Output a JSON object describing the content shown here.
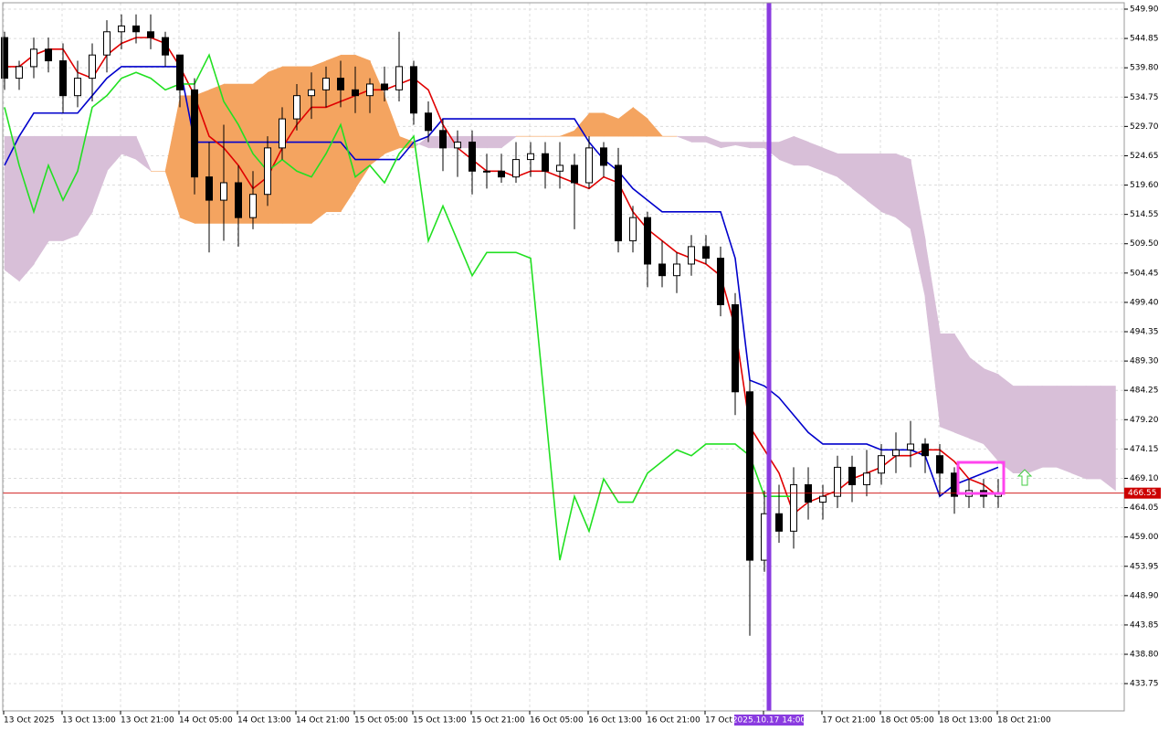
{
  "chart_data": {
    "type": "candlestick",
    "x_labels": [
      "13 Oct 2025",
      "13 Oct 13:00",
      "13 Oct 21:00",
      "14 Oct 05:00",
      "14 Oct 13:00",
      "14 Oct 21:00",
      "15 Oct 05:00",
      "15 Oct 13:00",
      "15 Oct 21:00",
      "16 Oct 05:00",
      "16 Oct 13:00",
      "16 Oct 21:00",
      "17 Oct 05:00",
      null,
      "17 Oct 21:00",
      "18 Oct 05:00",
      "18 Oct 13:00",
      "18 Oct 21:00"
    ],
    "open": [
      545,
      538,
      540,
      543,
      541,
      535,
      538,
      542,
      546,
      547,
      546,
      545,
      542,
      536,
      521,
      517,
      520,
      514,
      518,
      526,
      531,
      535,
      536,
      538,
      536,
      535,
      537,
      536,
      540,
      532,
      529,
      526,
      527,
      522,
      522,
      521,
      524,
      525,
      522,
      523,
      520,
      526,
      523,
      510,
      514,
      506,
      504,
      506,
      509,
      507,
      499,
      484,
      455,
      463,
      460,
      468,
      465,
      466,
      471,
      468,
      470,
      473,
      474,
      475,
      473,
      470,
      466,
      467,
      466
    ],
    "high": [
      546,
      541,
      545,
      545,
      544,
      541,
      544,
      548,
      549,
      549,
      549,
      546,
      542,
      538,
      527,
      530,
      523,
      522,
      528,
      533,
      537,
      539,
      540,
      541,
      540,
      538,
      540,
      546,
      541,
      534,
      531,
      529,
      529,
      525,
      525,
      527,
      527,
      527,
      527,
      525,
      528,
      527,
      526,
      516,
      515,
      510,
      508,
      511,
      511,
      509,
      501,
      486,
      467,
      468,
      471,
      471,
      468,
      473,
      473,
      474,
      475,
      477,
      479,
      476,
      475,
      471,
      469,
      469,
      469
    ],
    "low": [
      536,
      536,
      538,
      539,
      532,
      533,
      534,
      539,
      543,
      544,
      543,
      540,
      533,
      518,
      508,
      510,
      509,
      512,
      516,
      524,
      529,
      531,
      533,
      533,
      532,
      532,
      534,
      534,
      530,
      527,
      522,
      521,
      518,
      519,
      520,
      520,
      521,
      519,
      519,
      512,
      519,
      521,
      508,
      508,
      502,
      502,
      501,
      504,
      506,
      497,
      480,
      442,
      453,
      458,
      457,
      462,
      462,
      464,
      465,
      466,
      468,
      470,
      471,
      470,
      466,
      463,
      464,
      464,
      464
    ],
    "close": [
      538,
      540,
      543,
      541,
      535,
      538,
      542,
      546,
      547,
      546,
      545,
      542,
      536,
      521,
      517,
      520,
      514,
      518,
      526,
      531,
      535,
      536,
      538,
      536,
      535,
      537,
      536,
      540,
      532,
      529,
      526,
      527,
      522,
      522,
      521,
      524,
      525,
      522,
      523,
      520,
      526,
      523,
      510,
      514,
      506,
      504,
      506,
      509,
      507,
      499,
      484,
      455,
      463,
      460,
      468,
      465,
      466,
      471,
      468,
      470,
      473,
      474,
      475,
      473,
      470,
      466,
      467,
      466,
      466.55
    ],
    "lines": [
      {
        "color": "#0000cc",
        "values": [
          523,
          528,
          532,
          532,
          532,
          532,
          535,
          538,
          540,
          540,
          540,
          540,
          540,
          527,
          527,
          527,
          527,
          527,
          527,
          527,
          527,
          527,
          527,
          527,
          524,
          524,
          524,
          524,
          527,
          528,
          531,
          531,
          531,
          531,
          531,
          531,
          531,
          531,
          531,
          531,
          527,
          524,
          522,
          519,
          517,
          515,
          515,
          515,
          515,
          515,
          507,
          486,
          485,
          483,
          480,
          477,
          475,
          475,
          475,
          475,
          474,
          474,
          474,
          473,
          466,
          468,
          469,
          470,
          471
        ]
      },
      {
        "color": "#e00000",
        "values": [
          540,
          540,
          542,
          543,
          543,
          539,
          538,
          542,
          544,
          545,
          545,
          544,
          540,
          535,
          528,
          526,
          523,
          519,
          521,
          526,
          530,
          533,
          533,
          534,
          535,
          536,
          536,
          537,
          538,
          536,
          530,
          526,
          524,
          522,
          522,
          521,
          522,
          522,
          521,
          520,
          519,
          521,
          520,
          515,
          512,
          510,
          508,
          507,
          506,
          504,
          495,
          478,
          474,
          470,
          463,
          465,
          466,
          467,
          469,
          470,
          471,
          473,
          473,
          474,
          474,
          472,
          469,
          468,
          466
        ]
      },
      {
        "color": "#22e022",
        "values": [
          533,
          523,
          515,
          523,
          517,
          522,
          533,
          535,
          538,
          539,
          538,
          536,
          537,
          537,
          542,
          534,
          530,
          525,
          522,
          524,
          522,
          521,
          525,
          530,
          521,
          523,
          520,
          525,
          528,
          510,
          516,
          510,
          504,
          508,
          508,
          508,
          507,
          481,
          455,
          466,
          460,
          469,
          465,
          465,
          470,
          472,
          474,
          473,
          475,
          475,
          475,
          473,
          466,
          466,
          466,
          null,
          null,
          null,
          null,
          null,
          null,
          null,
          null,
          null,
          null,
          null,
          null,
          null,
          null
        ]
      }
    ],
    "cloud": {
      "span_a": [
        505,
        503,
        506,
        510,
        510,
        511,
        515,
        522,
        525,
        524,
        522,
        522,
        535,
        535,
        536,
        537,
        537,
        537,
        539,
        540,
        540,
        540,
        541,
        542,
        542,
        541,
        535,
        528,
        527,
        526,
        526,
        526,
        526,
        526,
        526,
        528,
        528,
        528,
        528,
        529,
        532,
        532,
        531,
        533,
        531,
        528,
        528,
        527,
        527,
        526,
        526.5,
        526,
        526,
        524,
        523,
        523,
        522,
        521,
        519,
        517,
        515,
        514,
        512,
        500,
        478,
        477,
        476,
        475,
        472,
        470,
        470,
        471,
        471,
        470,
        469,
        469,
        467
      ],
      "span_b": [
        528,
        528,
        528,
        528,
        528,
        528,
        528,
        528,
        528,
        528,
        522,
        522,
        514,
        513,
        513,
        513,
        513,
        513,
        513,
        513,
        513,
        513,
        515,
        515,
        519,
        523,
        525,
        526,
        526,
        528,
        528,
        528,
        528,
        528,
        528,
        528,
        528,
        528,
        528,
        528,
        528,
        528,
        528,
        528,
        528,
        528,
        528,
        528,
        528,
        527,
        527,
        527,
        527,
        527,
        528,
        527,
        526,
        525,
        525,
        525,
        525,
        525,
        524,
        510,
        494,
        494,
        490,
        488,
        487,
        485,
        485,
        485,
        485,
        485,
        485,
        485,
        485
      ],
      "up_color": "#f4a460",
      "down_color": "#d8bfd8"
    },
    "current_price": 466.55,
    "price_line_color": "#cc0000",
    "marker_label": "2025.10.17 14:00",
    "marker_color": "#8a3be0",
    "ylim": [
      429.05,
      551.0
    ],
    "yticks": [
      {
        "value": 549.9,
        "label": "549.90"
      },
      {
        "value": 544.85,
        "label": "544.85"
      },
      {
        "value": 539.8,
        "label": "539.80"
      },
      {
        "value": 534.75,
        "label": "534.75"
      },
      {
        "value": 529.7,
        "label": "529.70"
      },
      {
        "value": 524.65,
        "label": "524.65"
      },
      {
        "value": 519.6,
        "label": "519.60"
      },
      {
        "value": 514.55,
        "label": "514.55"
      },
      {
        "value": 509.5,
        "label": "509.50"
      },
      {
        "value": 504.45,
        "label": "504.45"
      },
      {
        "value": 499.4,
        "label": "499.40"
      },
      {
        "value": 494.35,
        "label": "494.35"
      },
      {
        "value": 489.3,
        "label": "489.30"
      },
      {
        "value": 484.25,
        "label": "484.25"
      },
      {
        "value": 479.2,
        "label": "479.20"
      },
      {
        "value": 474.15,
        "label": "474.15"
      },
      {
        "value": 469.1,
        "label": "469.10"
      },
      {
        "value": 464.05,
        "label": "464.05"
      },
      {
        "value": 459,
        "label": "459.00"
      },
      {
        "value": 453.95,
        "label": "453.95"
      },
      {
        "value": 448.9,
        "label": "448.90"
      },
      {
        "value": 443.85,
        "label": "443.85"
      },
      {
        "value": 438.8,
        "label": "438.80"
      },
      {
        "value": 433.75,
        "label": "433.75"
      }
    ],
    "grid": true
  }
}
